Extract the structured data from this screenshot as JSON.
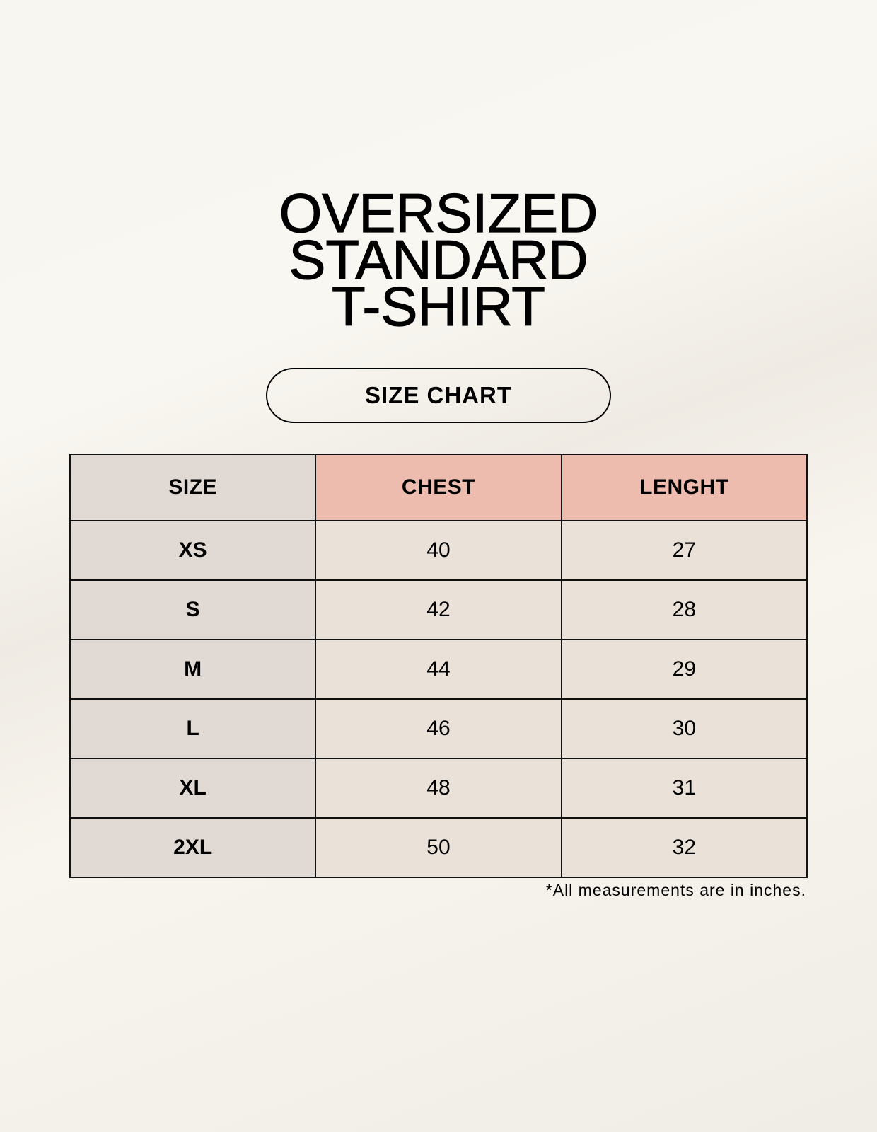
{
  "title_lines": [
    "OVERSIZED",
    "STANDARD",
    "T-SHIRT"
  ],
  "badge": "SIZE CHART",
  "table": {
    "headers": [
      "SIZE",
      "CHEST",
      "LENGHT"
    ],
    "rows": [
      [
        "XS",
        "40",
        "27"
      ],
      [
        "S",
        "42",
        "28"
      ],
      [
        "M",
        "44",
        "29"
      ],
      [
        "L",
        "46",
        "30"
      ],
      [
        "XL",
        "48",
        "31"
      ],
      [
        "2XL",
        "50",
        "32"
      ]
    ]
  },
  "footnote": "*All measurements are in inches.",
  "colors": {
    "size_column": "#e1d9d3",
    "header_accent": "#edbcae",
    "value_cells": "#eae2d8"
  }
}
